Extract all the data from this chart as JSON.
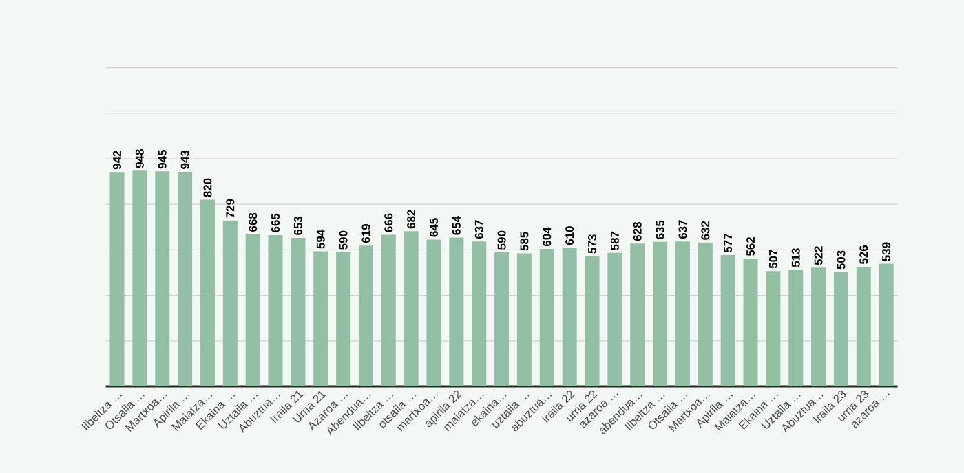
{
  "chart_data": {
    "type": "bar",
    "categories": [
      "Ilbeltza …",
      "Otsaila …",
      "Martxoa…",
      "Apirila …",
      "Maiatza…",
      "Ekaina …",
      "Uztaila …",
      "Abuztua…",
      "Iraila 21",
      "Urria 21",
      "Azaroa …",
      "Abendua…",
      "Ilbeltza …",
      "otsaila …",
      "martxoa…",
      "apirila 22",
      "maiatza…",
      "ekaina…",
      "uztaila …",
      "abuztua…",
      "iraila 22",
      "urria 22",
      "azaroa …",
      "abendua…",
      "Ilbeltza …",
      "Otsaila …",
      "Martxoa…",
      "Apirila …",
      "Maiatza…",
      "Ekaina …",
      "Uztaila …",
      "Abuztua…",
      "Iraila 23",
      "urria 23",
      "azaroa …"
    ],
    "values": [
      942,
      948,
      945,
      943,
      820,
      729,
      668,
      665,
      653,
      594,
      590,
      619,
      666,
      682,
      645,
      654,
      637,
      590,
      585,
      604,
      610,
      573,
      587,
      628,
      635,
      637,
      632,
      577,
      562,
      507,
      513,
      522,
      503,
      526,
      539
    ],
    "color": "#93bfa4",
    "grid": "y",
    "tick_labels": "x",
    "data_labels": true
  }
}
